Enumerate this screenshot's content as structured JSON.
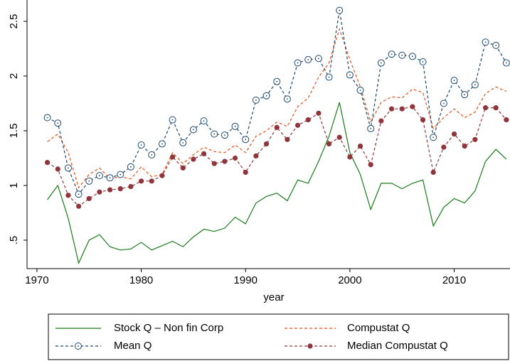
{
  "chart_data": {
    "type": "line",
    "x_label": "year",
    "x": [
      1971,
      1972,
      1973,
      1974,
      1975,
      1976,
      1977,
      1978,
      1979,
      1980,
      1981,
      1982,
      1983,
      1984,
      1985,
      1986,
      1987,
      1988,
      1989,
      1990,
      1991,
      1992,
      1993,
      1994,
      1995,
      1996,
      1997,
      1998,
      1999,
      2000,
      2001,
      2002,
      2003,
      2004,
      2005,
      2006,
      2007,
      2008,
      2009,
      2010,
      2011,
      2012,
      2013,
      2014,
      2015
    ],
    "series": [
      {
        "name": "Stock Q – Non fin Corp",
        "color": "#1a7a1a",
        "dashed": false,
        "values": [
          0.87,
          1.0,
          0.7,
          0.29,
          0.5,
          0.55,
          0.44,
          0.41,
          0.42,
          0.48,
          0.41,
          0.45,
          0.49,
          0.44,
          0.53,
          0.6,
          0.58,
          0.61,
          0.71,
          0.65,
          0.84,
          0.9,
          0.93,
          0.86,
          1.05,
          1.02,
          1.22,
          1.45,
          1.76,
          1.3,
          1.1,
          0.78,
          1.02,
          1.02,
          0.97,
          1.02,
          1.05,
          0.63,
          0.8,
          0.88,
          0.84,
          0.95,
          1.22,
          1.33,
          1.24
        ]
      },
      {
        "name": "Compustat Q",
        "color": "#e8501a",
        "dashed": true,
        "values": [
          1.4,
          1.47,
          1.3,
          0.98,
          1.1,
          1.16,
          1.06,
          1.08,
          1.06,
          1.17,
          1.08,
          1.1,
          1.3,
          1.2,
          1.28,
          1.35,
          1.31,
          1.3,
          1.37,
          1.3,
          1.45,
          1.5,
          1.58,
          1.54,
          1.72,
          1.8,
          1.99,
          2.12,
          2.43,
          2.15,
          1.9,
          1.58,
          1.76,
          1.81,
          1.8,
          1.88,
          1.85,
          1.52,
          1.62,
          1.7,
          1.62,
          1.67,
          1.84,
          1.9,
          1.86
        ]
      },
      {
        "name": "Mean Q",
        "color": "#1a476f",
        "dashed": true,
        "marker": "hollow",
        "values": [
          1.62,
          1.57,
          1.16,
          0.92,
          1.04,
          1.09,
          1.07,
          1.1,
          1.17,
          1.37,
          1.28,
          1.38,
          1.6,
          1.39,
          1.51,
          1.59,
          1.47,
          1.46,
          1.54,
          1.42,
          1.78,
          1.82,
          1.95,
          1.79,
          2.12,
          2.15,
          2.16,
          1.99,
          2.6,
          2.01,
          1.87,
          1.52,
          2.12,
          2.2,
          2.19,
          2.18,
          2.13,
          1.44,
          1.75,
          1.96,
          1.83,
          1.92,
          2.31,
          2.28,
          2.12
        ]
      },
      {
        "name": "Median Compustat Q",
        "color": "#90353b",
        "dashed": true,
        "marker": "filled",
        "values": [
          1.21,
          1.15,
          0.91,
          0.81,
          0.88,
          0.94,
          0.96,
          0.97,
          0.99,
          1.04,
          1.04,
          1.09,
          1.26,
          1.16,
          1.24,
          1.29,
          1.2,
          1.22,
          1.25,
          1.12,
          1.27,
          1.38,
          1.53,
          1.42,
          1.55,
          1.6,
          1.66,
          1.38,
          1.44,
          1.26,
          1.36,
          1.19,
          1.59,
          1.7,
          1.7,
          1.72,
          1.6,
          1.12,
          1.35,
          1.47,
          1.36,
          1.42,
          1.71,
          1.71,
          1.6
        ]
      }
    ],
    "xlim": [
      1969.05,
      2015.35
    ],
    "xticks": [
      1970,
      1980,
      1990,
      2000,
      2010
    ],
    "ylim": [
      0.24,
      2.695
    ],
    "yticks": [
      {
        "value": 0.5,
        "label": ".5"
      },
      1,
      1.5,
      2,
      2.5
    ],
    "grid": false,
    "legend": "bottom"
  }
}
